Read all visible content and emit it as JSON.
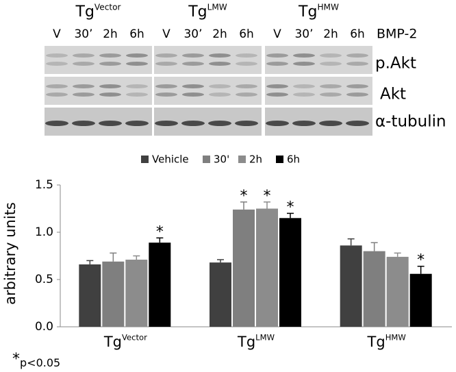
{
  "blot": {
    "groups": [
      {
        "base": "Tg",
        "sup": "Vector"
      },
      {
        "base": "Tg",
        "sup": "LMW"
      },
      {
        "base": "Tg",
        "sup": "HMW"
      }
    ],
    "lanes": [
      "V",
      "30’",
      "2h",
      "6h"
    ],
    "treatment": "BMP-2",
    "rows": [
      "p.Akt",
      "Akt",
      "α-tubulin"
    ]
  },
  "chart_data": {
    "type": "bar",
    "categories": [
      {
        "base": "Tg",
        "sup": "Vector"
      },
      {
        "base": "Tg",
        "sup": "LMW"
      },
      {
        "base": "Tg",
        "sup": "HMW"
      }
    ],
    "series": [
      {
        "name": "Vehicle",
        "color": "#404040",
        "values": [
          0.66,
          0.68,
          0.86
        ],
        "errors": [
          0.04,
          0.03,
          0.07
        ],
        "significant": [
          false,
          false,
          false
        ]
      },
      {
        "name": "30'",
        "color": "#7f7f7f",
        "values": [
          0.69,
          1.24,
          0.8
        ],
        "errors": [
          0.09,
          0.08,
          0.09
        ],
        "significant": [
          false,
          true,
          false
        ]
      },
      {
        "name": "2h",
        "color": "#8c8c8c",
        "values": [
          0.71,
          1.25,
          0.74
        ],
        "errors": [
          0.04,
          0.07,
          0.04
        ],
        "significant": [
          false,
          true,
          false
        ]
      },
      {
        "name": "6h",
        "color": "#000000",
        "values": [
          0.89,
          1.15,
          0.56
        ],
        "errors": [
          0.05,
          0.05,
          0.08
        ],
        "significant": [
          true,
          true,
          true
        ]
      }
    ],
    "marker": "*",
    "ylabel": "arbitrary units",
    "ylim": [
      0,
      1.5
    ],
    "yticks": [
      {
        "value": 0,
        "label": "0.0"
      },
      {
        "value": 0.5,
        "label": "0.5"
      },
      {
        "value": 1,
        "label": "1.0"
      },
      {
        "value": 1.5,
        "label": "1.5"
      }
    ],
    "legend": "top",
    "footnote": {
      "symbol": "*",
      "text": "p<0.05"
    }
  }
}
